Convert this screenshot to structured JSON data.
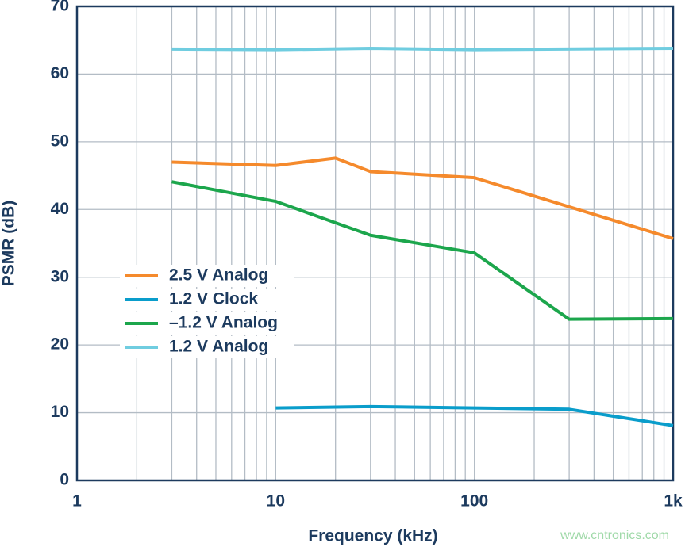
{
  "chart_data": {
    "type": "line",
    "xlabel": "Frequency (kHz)",
    "ylabel": "PSMR  (dB)",
    "xscale": "log",
    "xlim": [
      1,
      1000
    ],
    "ylim": [
      0,
      70
    ],
    "xticks": [
      1,
      10,
      100,
      {
        "value": 1000,
        "label": "1k"
      }
    ],
    "x_minor_ticks": [
      2,
      3,
      4,
      5,
      6,
      7,
      8,
      9,
      20,
      30,
      40,
      50,
      60,
      70,
      80,
      90,
      200,
      300,
      400,
      500,
      600,
      700,
      800,
      900
    ],
    "yticks": [
      0,
      10,
      20,
      30,
      40,
      50,
      60,
      70
    ],
    "grid": true,
    "legend_position": "left",
    "series": [
      {
        "name": "2.5 V Analog",
        "color": "#f58a2c",
        "x": [
          3,
          10,
          20,
          30,
          100,
          300,
          1000
        ],
        "values": [
          47.0,
          46.5,
          47.6,
          45.6,
          44.7,
          40.4,
          35.7
        ]
      },
      {
        "name": "1.2 V Clock",
        "color": "#0a9dcb",
        "x": [
          10,
          30,
          100,
          300,
          1000
        ],
        "values": [
          10.7,
          10.9,
          10.7,
          10.5,
          8.1
        ]
      },
      {
        "name": "–1.2 V Analog",
        "color": "#1ca64c",
        "x": [
          3,
          10,
          30,
          100,
          300,
          1000
        ],
        "values": [
          44.1,
          41.2,
          36.2,
          33.6,
          23.8,
          23.9
        ]
      },
      {
        "name": "1.2 V Analog",
        "color": "#70cde0",
        "x": [
          3,
          10,
          30,
          100,
          1000
        ],
        "values": [
          63.7,
          63.6,
          63.8,
          63.6,
          63.8
        ]
      }
    ],
    "watermark": "www.cntronics.com"
  }
}
